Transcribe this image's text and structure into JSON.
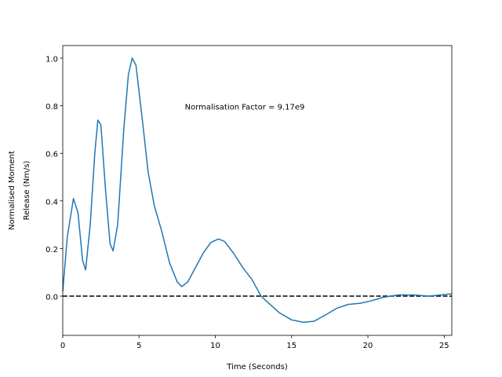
{
  "chart_data": {
    "type": "line",
    "annotation": {
      "text": "Normalisation Factor = 9.17e9",
      "x": 8,
      "y": 0.8
    },
    "xlabel": "Time (Seconds)",
    "ylabel": [
      "Normalised Moment",
      "Release (Nm/s)"
    ],
    "x": [
      0,
      0.3,
      0.7,
      1.0,
      1.3,
      1.5,
      1.8,
      2.1,
      2.3,
      2.5,
      2.8,
      3.1,
      3.3,
      3.6,
      4.0,
      4.3,
      4.55,
      4.8,
      5.2,
      5.6,
      6.0,
      6.5,
      7.0,
      7.5,
      7.8,
      8.2,
      8.7,
      9.2,
      9.7,
      10.2,
      10.6,
      11.2,
      11.8,
      12.4,
      13.0,
      13.5,
      14.2,
      15.0,
      15.8,
      16.5,
      17.2,
      18.0,
      18.7,
      19.5,
      20.2,
      21.0,
      22.0,
      23.0,
      24.0,
      24.8,
      25.5
    ],
    "series": [
      {
        "color": "#1f77b4",
        "values": [
          0.02,
          0.25,
          0.41,
          0.35,
          0.15,
          0.11,
          0.3,
          0.6,
          0.74,
          0.72,
          0.45,
          0.22,
          0.19,
          0.3,
          0.7,
          0.93,
          1.0,
          0.97,
          0.75,
          0.52,
          0.38,
          0.27,
          0.14,
          0.06,
          0.04,
          0.06,
          0.12,
          0.18,
          0.225,
          0.24,
          0.23,
          0.18,
          0.12,
          0.07,
          0.0,
          -0.03,
          -0.07,
          -0.1,
          -0.11,
          -0.105,
          -0.08,
          -0.05,
          -0.035,
          -0.03,
          -0.02,
          -0.005,
          0.005,
          0.005,
          0.0,
          0.005,
          0.01
        ]
      }
    ],
    "reference_line": 0,
    "xlim": [
      0,
      25.5
    ],
    "ylim": [
      -0.165,
      1.053
    ],
    "xticks": [
      0,
      5,
      10,
      15,
      20,
      25
    ],
    "yticks": [
      {
        "value": 0,
        "label": "0.0"
      },
      {
        "value": 0.2,
        "label": "0.2"
      },
      {
        "value": 0.4,
        "label": "0.4"
      },
      {
        "value": 0.6,
        "label": "0.6"
      },
      {
        "value": 0.8,
        "label": "0.8"
      },
      {
        "value": 1,
        "label": "1.0"
      }
    ]
  }
}
